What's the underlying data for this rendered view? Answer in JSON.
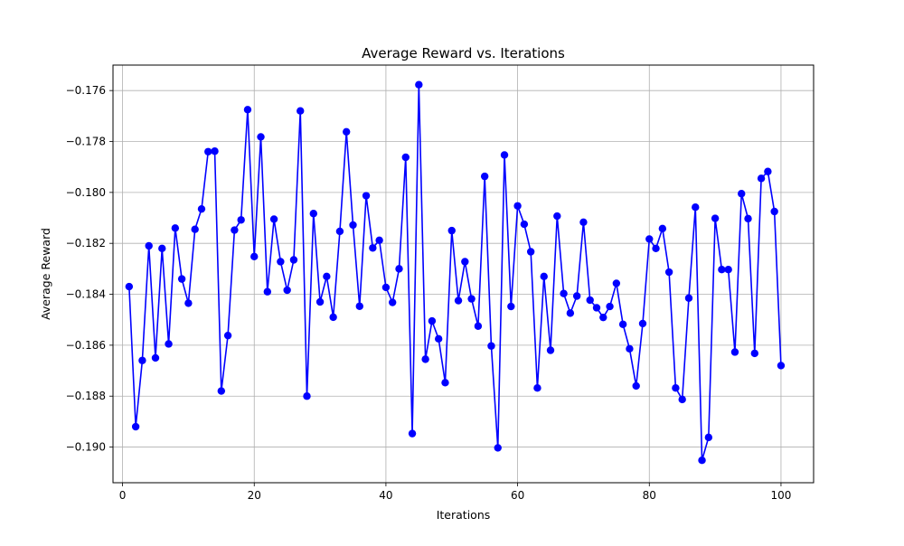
{
  "chart_data": {
    "type": "line",
    "title": "Average Reward vs. Iterations",
    "xlabel": "Iterations",
    "ylabel": "Average Reward",
    "xlim": [
      -1.45,
      104.95
    ],
    "ylim": [
      -0.1914,
      -0.175
    ],
    "xticks": [
      0,
      20,
      40,
      60,
      80,
      100
    ],
    "yticks": [
      -0.19,
      -0.188,
      -0.186,
      -0.184,
      -0.182,
      -0.18,
      -0.178,
      -0.176
    ],
    "xtick_labels": [
      "0",
      "20",
      "40",
      "60",
      "80",
      "100"
    ],
    "ytick_labels": [
      "−0.190",
      "−0.188",
      "−0.186",
      "−0.184",
      "−0.182",
      "−0.180",
      "−0.178",
      "−0.176"
    ],
    "grid": true,
    "legend": false,
    "series": [
      {
        "color": "#0000ff",
        "marker": "circle",
        "x": [
          1,
          2,
          3,
          4,
          5,
          6,
          7,
          8,
          9,
          10,
          11,
          12,
          13,
          14,
          15,
          16,
          17,
          18,
          19,
          20,
          21,
          22,
          23,
          24,
          25,
          26,
          27,
          28,
          29,
          30,
          31,
          32,
          33,
          34,
          35,
          36,
          37,
          38,
          39,
          40,
          41,
          42,
          43,
          44,
          45,
          46,
          47,
          48,
          49,
          50,
          51,
          52,
          53,
          54,
          55,
          56,
          57,
          58,
          59,
          60,
          61,
          62,
          63,
          64,
          65,
          66,
          67,
          68,
          69,
          70,
          71,
          72,
          73,
          74,
          75,
          76,
          77,
          78,
          79,
          80,
          81,
          82,
          83,
          84,
          85,
          86,
          87,
          88,
          89,
          90,
          91,
          92,
          93,
          94,
          95,
          96,
          97,
          98,
          99,
          100
        ],
        "y": [
          -0.1837,
          -0.1892,
          -0.1866,
          -0.1821,
          -0.1865,
          -0.1822,
          -0.18595,
          -0.1814,
          -0.1834,
          -0.18435,
          -0.18145,
          -0.18065,
          -0.1784,
          -0.17838,
          -0.1878,
          -0.18562,
          -0.18148,
          -0.18108,
          -0.17675,
          -0.18252,
          -0.17782,
          -0.1839,
          -0.18105,
          -0.18272,
          -0.18384,
          -0.18265,
          -0.1768,
          -0.188,
          -0.18083,
          -0.1843,
          -0.1833,
          -0.1849,
          -0.18153,
          -0.17762,
          -0.18128,
          -0.18447,
          -0.18013,
          -0.18218,
          -0.18188,
          -0.18373,
          -0.18432,
          -0.183,
          -0.17862,
          -0.18947,
          -0.17577,
          -0.18655,
          -0.18505,
          -0.18575,
          -0.18747,
          -0.1815,
          -0.18425,
          -0.18272,
          -0.18418,
          -0.18525,
          -0.17937,
          -0.18603,
          -0.19003,
          -0.17853,
          -0.18448,
          -0.18053,
          -0.18125,
          -0.18233,
          -0.18768,
          -0.1833,
          -0.1862,
          -0.18093,
          -0.18397,
          -0.18474,
          -0.18407,
          -0.18117,
          -0.18423,
          -0.18453,
          -0.18491,
          -0.18448,
          -0.18357,
          -0.18518,
          -0.18614,
          -0.1876,
          -0.18515,
          -0.18183,
          -0.1822,
          -0.18142,
          -0.18313,
          -0.18768,
          -0.18813,
          -0.18415,
          -0.18058,
          -0.19052,
          -0.18962,
          -0.18102,
          -0.18303,
          -0.18303,
          -0.18627,
          -0.18005,
          -0.18103,
          -0.18632,
          -0.17945,
          -0.17918,
          -0.18075,
          -0.1868
        ]
      }
    ]
  }
}
